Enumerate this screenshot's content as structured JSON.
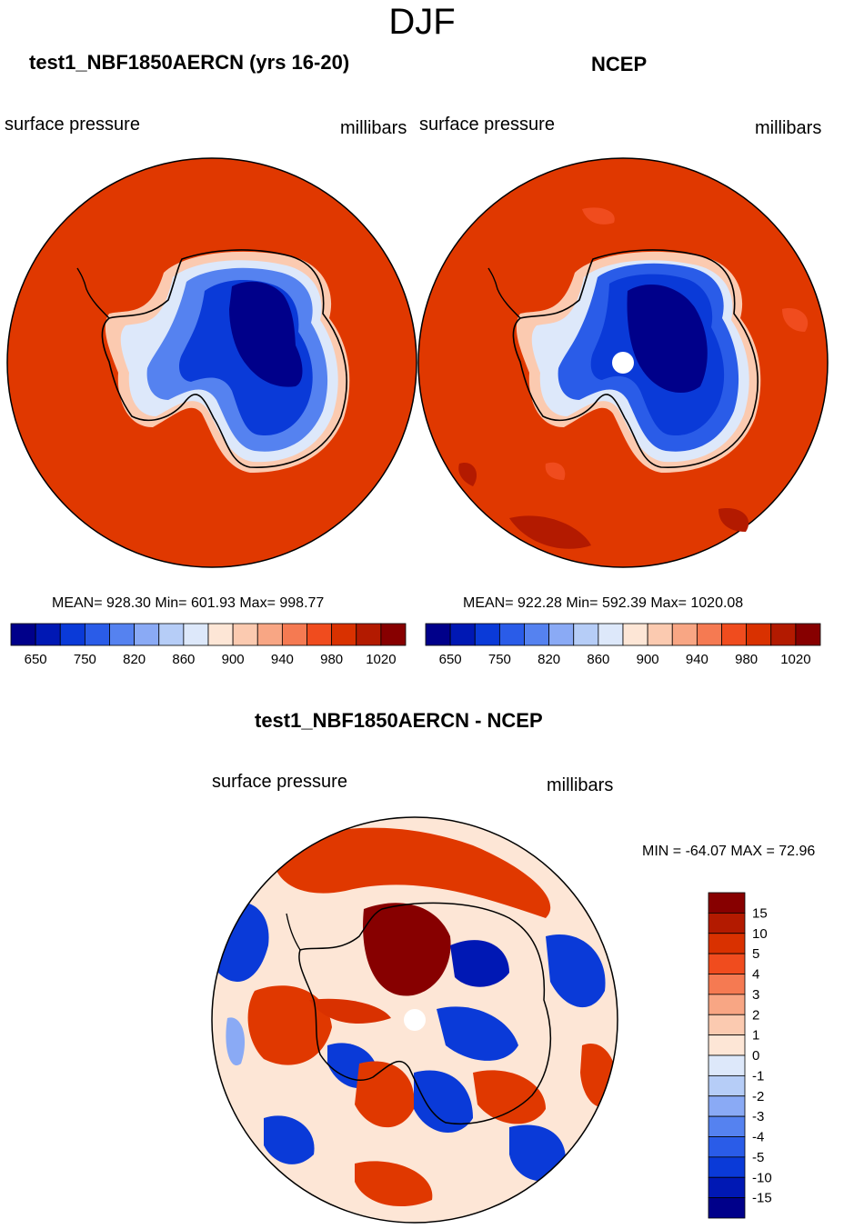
{
  "page_title": "DJF",
  "colors": {
    "scale": [
      "#00008a",
      "#0018b4",
      "#0a3ad8",
      "#2a5ce8",
      "#5582f0",
      "#8aaaf5",
      "#b6cdf7",
      "#dde8fa",
      "#fde6d6",
      "#fbcab0",
      "#f8a684",
      "#f57a52",
      "#f04c1e",
      "#d93100",
      "#b31a00",
      "#870000"
    ],
    "ocean": "#e03800",
    "coast": "#000000"
  },
  "chart_data": [
    {
      "type": "contour-map",
      "title": "test1_NBF1850AERCN (yrs 16-20)",
      "left_label": "surface pressure",
      "right_label": "millibars",
      "stats": "MEAN= 928.30  Min= 601.93  Max= 998.77",
      "mean": 928.3,
      "min": 601.93,
      "max": 998.77,
      "colorbar_ticks": [
        "650",
        "750",
        "820",
        "860",
        "900",
        "940",
        "980",
        "1020"
      ],
      "levels": [
        650,
        700,
        750,
        800,
        820,
        840,
        860,
        880,
        900,
        920,
        940,
        960,
        980,
        1000,
        1020
      ]
    },
    {
      "type": "contour-map",
      "title": "NCEP",
      "left_label": "surface pressure",
      "right_label": "millibars",
      "stats": "MEAN= 922.28  Min= 592.39  Max= 1020.08",
      "mean": 922.28,
      "min": 592.39,
      "max": 1020.08,
      "colorbar_ticks": [
        "650",
        "750",
        "820",
        "860",
        "900",
        "940",
        "980",
        "1020"
      ],
      "levels": [
        650,
        700,
        750,
        800,
        820,
        840,
        860,
        880,
        900,
        920,
        940,
        960,
        980,
        1000,
        1020
      ]
    },
    {
      "type": "contour-map",
      "title": "test1_NBF1850AERCN - NCEP",
      "left_label": "surface pressure",
      "right_label": "millibars",
      "stats": "MIN = -64.07 MAX =  72.96",
      "min": -64.07,
      "max": 72.96,
      "colorbar_ticks": [
        "15",
        "10",
        "5",
        "4",
        "3",
        "2",
        "1",
        "0",
        "-1",
        "-2",
        "-3",
        "-4",
        "-5",
        "-10",
        "-15"
      ]
    }
  ]
}
